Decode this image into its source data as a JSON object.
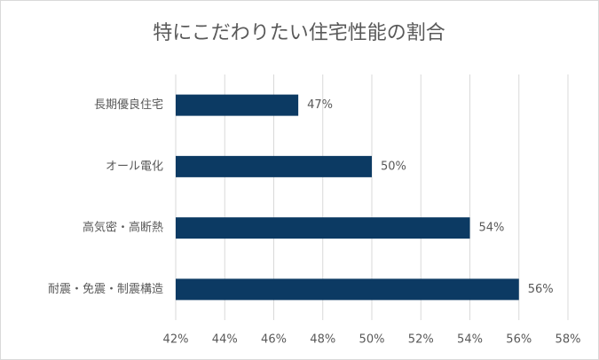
{
  "chart_data": {
    "type": "bar",
    "title": "特にこだわりたい住宅性能の割合",
    "categories": [
      "長期優良住宅",
      "オール電化",
      "高気密・高断熱",
      "耐震・免震・制震構造"
    ],
    "values": [
      47,
      50,
      54,
      56
    ],
    "value_labels": [
      "47%",
      "50%",
      "54%",
      "56%"
    ],
    "color": "#0c3a63",
    "xlim": [
      42,
      58
    ],
    "xticks": [
      {
        "value": 42,
        "label": "42%"
      },
      {
        "value": 44,
        "label": "44%"
      },
      {
        "value": 46,
        "label": "46%"
      },
      {
        "value": 48,
        "label": "48%"
      },
      {
        "value": 50,
        "label": "50%"
      },
      {
        "value": 52,
        "label": "52%"
      },
      {
        "value": 54,
        "label": "54%"
      },
      {
        "value": 56,
        "label": "56%"
      },
      {
        "value": 58,
        "label": "58%"
      }
    ],
    "grid": true
  }
}
